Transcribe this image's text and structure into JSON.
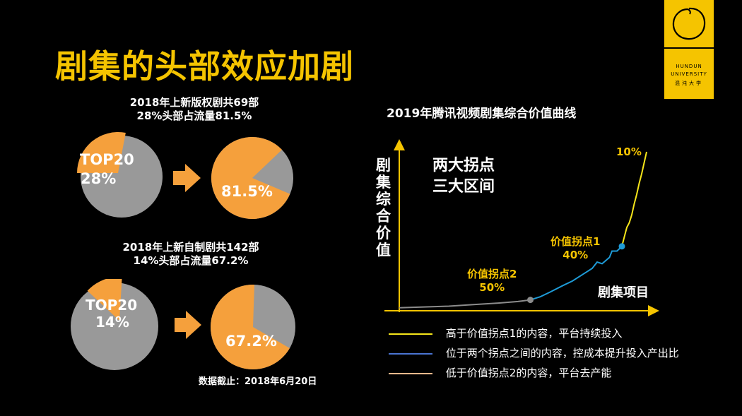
{
  "slide_title": "剧集的头部效应加剧",
  "logo": {
    "line1": "HUNDUN",
    "line2": "UNIVERSITY",
    "line3": "混沌大学"
  },
  "section1": {
    "line1": "2018年上新版权剧共69部",
    "line2": "28%头部占流量81.5%",
    "pie_left": {
      "label_a": "TOP20",
      "label_b": "28%",
      "value": 28
    },
    "pie_right": {
      "label": "81.5%",
      "value": 81.5
    }
  },
  "section2": {
    "line1": "2018年上新自制剧共142部",
    "line2": "14%头部占流量67.2%",
    "pie_left": {
      "label_a": "TOP20",
      "label_b": "14%",
      "value": 14
    },
    "pie_right": {
      "label": "67.2%",
      "value": 67.2
    }
  },
  "note": "数据截止：2018年6月20日",
  "chart_data": {
    "type": "line",
    "title": "2019年腾讯视频剧集综合价值曲线",
    "xlabel": "剧集项目",
    "ylabel": "剧集综合价值",
    "annotation": {
      "line1": "两大拐点",
      "line2": "三大区间"
    },
    "x_domain": [
      0,
      100
    ],
    "y_domain": [
      0,
      100
    ],
    "series": [
      {
        "name": "低于价值拐点2",
        "color": "#8c8c8c",
        "points": [
          [
            0,
            1
          ],
          [
            10,
            1.5
          ],
          [
            20,
            2
          ],
          [
            30,
            3
          ],
          [
            40,
            4
          ],
          [
            48,
            5
          ],
          [
            53,
            6
          ]
        ]
      },
      {
        "name": "两拐点之间",
        "color": "#1e9bd7",
        "points": [
          [
            53,
            6
          ],
          [
            57,
            8
          ],
          [
            61,
            11
          ],
          [
            66,
            15
          ],
          [
            70,
            18
          ],
          [
            74,
            22
          ],
          [
            78,
            26
          ],
          [
            80,
            30
          ],
          [
            82,
            29
          ],
          [
            85,
            33
          ],
          [
            86,
            37
          ],
          [
            88,
            37
          ],
          [
            90,
            40
          ]
        ]
      },
      {
        "name": "高于价值拐点1",
        "color": "#f5e51a",
        "points": [
          [
            90,
            40
          ],
          [
            91,
            46
          ],
          [
            92,
            52
          ],
          [
            93,
            55
          ],
          [
            94,
            60
          ],
          [
            95,
            67
          ],
          [
            96,
            73
          ],
          [
            97,
            80
          ],
          [
            98,
            86
          ],
          [
            99,
            93
          ],
          [
            100,
            100
          ]
        ]
      }
    ],
    "markers": [
      {
        "x": 53,
        "y": 6,
        "color": "#8c8c8c",
        "label_a": "价值拐点2",
        "label_b": "50%"
      },
      {
        "x": 90,
        "y": 40,
        "color": "#1e9bd7",
        "label_a": "价值拐点1",
        "label_b": "40%"
      }
    ],
    "top_label": "10%",
    "legend": [
      {
        "color": "#f5e51a",
        "text": "高于价值拐点1的内容，平台持续投入"
      },
      {
        "color": "#4a74d1",
        "text": "位于两个拐点之间的内容，控成本提升投入产出比"
      },
      {
        "color": "#f5b98c",
        "text": "低于价值拐点2的内容，平台去产能"
      }
    ]
  },
  "colors": {
    "accent": "#f5c400",
    "pie_orange": "#f5a03c",
    "pie_gray": "#999999"
  }
}
